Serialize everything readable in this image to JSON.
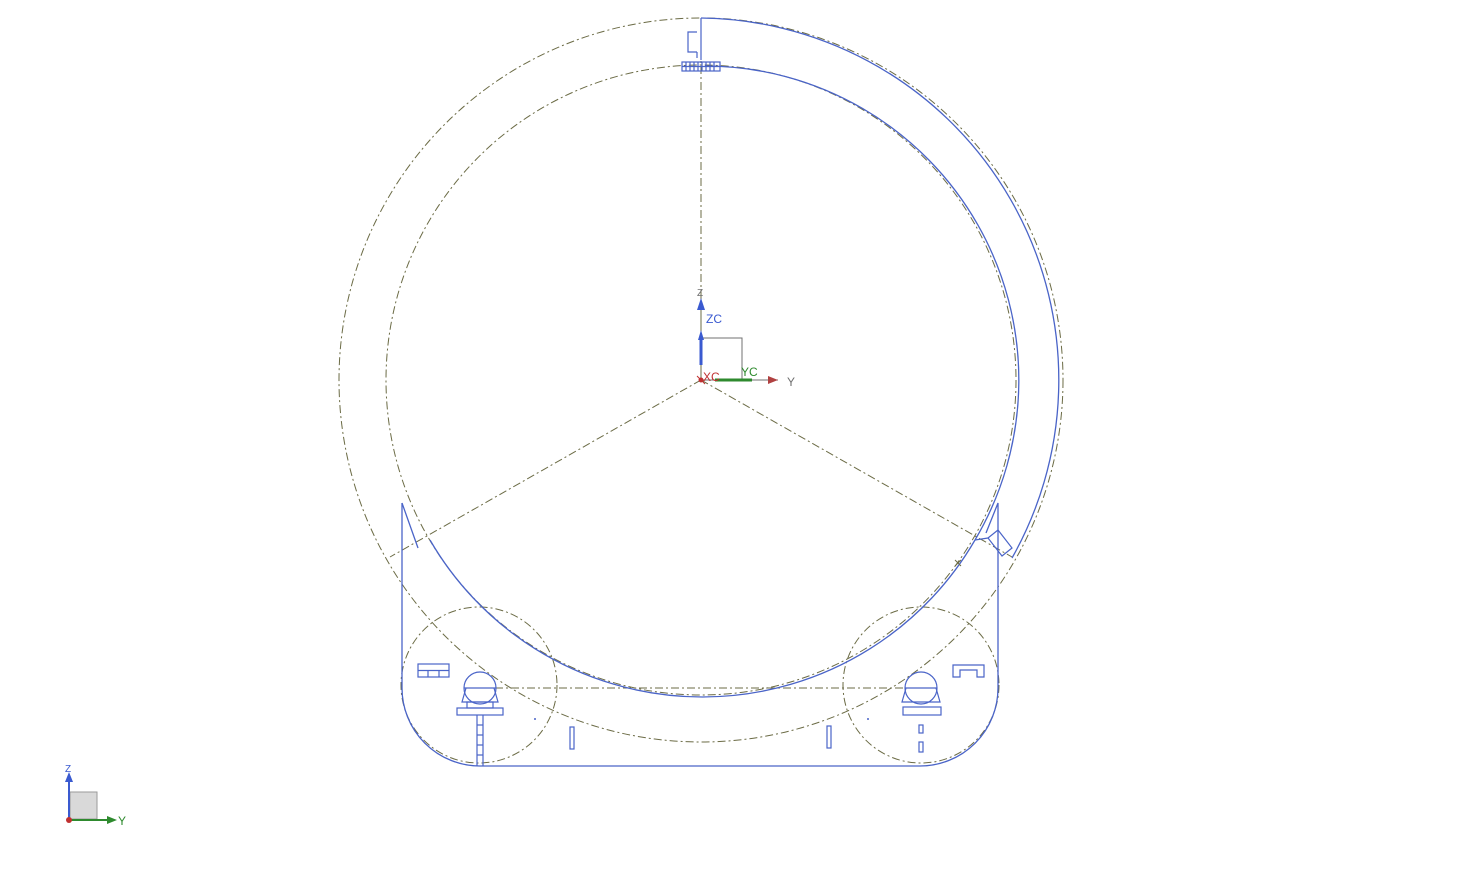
{
  "viewport": {
    "background": "#ffffff"
  },
  "colors": {
    "geometry": "#4a64c8",
    "centerline": "#6b6b45",
    "axis_z": "#3a5ad0",
    "axis_y": "#2e8a2e",
    "axis_x": "#c03030",
    "label_gray": "#707070"
  },
  "wcs": {
    "z_label": "Z",
    "zc_label": "ZC",
    "xc_label": "XC",
    "yc_label": "YC",
    "y_label": "Y"
  },
  "triad": {
    "z_label": "Z",
    "y_label": "Y"
  }
}
